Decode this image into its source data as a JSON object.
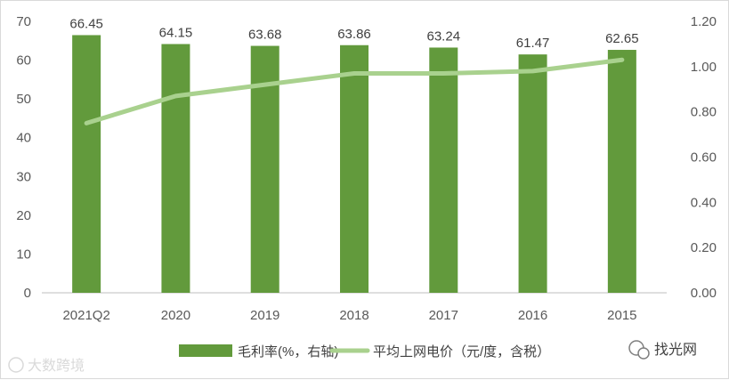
{
  "chart_data": {
    "type": "bar",
    "categories": [
      "2021Q2",
      "2020",
      "2019",
      "2018",
      "2017",
      "2016",
      "2015"
    ],
    "series": [
      {
        "name": "毛利率(%，右轴)",
        "type": "bar",
        "axis": "left",
        "color": "#629a3c",
        "values": [
          66.45,
          64.15,
          63.68,
          63.86,
          63.24,
          61.47,
          62.65
        ]
      },
      {
        "name": "平均上网电价（元/度，含税）",
        "type": "line",
        "axis": "right",
        "color": "#a9d18e",
        "values": [
          0.75,
          0.87,
          0.92,
          0.97,
          0.97,
          0.98,
          1.03
        ]
      }
    ],
    "y_left": {
      "lim": [
        0,
        70
      ],
      "ticks": [
        "0",
        "10",
        "20",
        "30",
        "40",
        "50",
        "60",
        "70"
      ]
    },
    "y_right": {
      "lim": [
        0,
        1.2
      ],
      "ticks": [
        "0.00",
        "0.20",
        "0.40",
        "0.60",
        "0.80",
        "1.00",
        "1.20"
      ]
    },
    "grid": false,
    "legend_position": "bottom"
  },
  "watermarks": {
    "left": "大数跨境",
    "right": "找光网"
  }
}
